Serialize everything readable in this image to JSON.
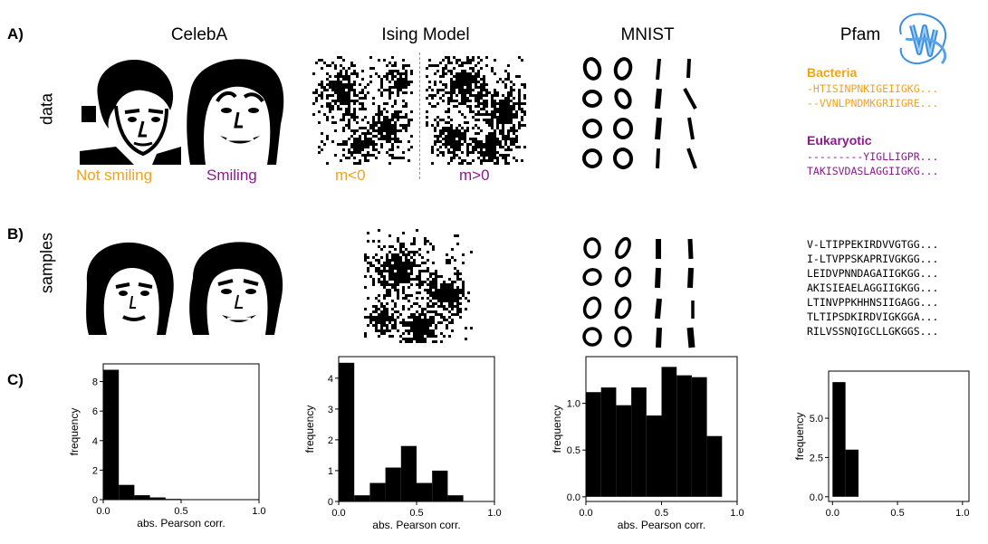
{
  "panel_labels": {
    "a": "A)",
    "b": "B)",
    "c": "C)"
  },
  "columns": {
    "celeba": "CelebA",
    "ising": "Ising Model",
    "mnist": "MNIST",
    "pfam": "Pfam"
  },
  "row_labels": {
    "data": "data",
    "samples": "samples"
  },
  "captions": {
    "not_smiling": "Not smiling",
    "smiling": "Smiling",
    "m_neg": "m<0",
    "m_pos": "m>0"
  },
  "colors": {
    "orange": "#f4a21c",
    "purple": "#8a1a8e",
    "divider": "#3ab0e0",
    "protein": "#3b8ede"
  },
  "pfam": {
    "bacteria_label": "Bacteria",
    "bacteria_seqs": [
      "-HTISINPNKIGEIIGKG...",
      "--VVNLPNDMKGRIIGRE..."
    ],
    "eukaryotic_label": "Eukaryotic",
    "eukaryotic_seqs": [
      "---------YIGLLIGPR...",
      "TAKISVDASLAGGIIGKG..."
    ],
    "sample_seqs": [
      "V-LTIPPEKIRDVVGTGG...",
      "I-LTVPPSKAPRIVGKGG...",
      "LEIDVPNNDAGAIIGKGG...",
      "AKISIEAELAGGIIGKGG...",
      "LTINVPPKHHNSIIGAGG...",
      "TLTIPSDKIRDVIGKGGA...",
      "RILVSSNQIGCLLGKGGS..."
    ]
  },
  "chart_data": [
    {
      "type": "bar",
      "title": "",
      "xlabel": "abs. Pearson corr.",
      "ylabel": "frequency",
      "xlim": [
        0,
        1
      ],
      "ylim": [
        0,
        9.2
      ],
      "xticks": [
        "0.0",
        "0.5",
        "1.0"
      ],
      "yticks": [
        0,
        2,
        4,
        6,
        8
      ],
      "ytick_labels": [
        "0",
        "2",
        "4",
        "6",
        "8"
      ],
      "bin_edges": [
        0,
        0.1,
        0.2,
        0.3,
        0.4,
        0.5
      ],
      "values": [
        8.8,
        1.0,
        0.3,
        0.15,
        0.05
      ]
    },
    {
      "type": "bar",
      "title": "",
      "xlabel": "abs. Pearson corr.",
      "ylabel": "frequency",
      "xlim": [
        0,
        1
      ],
      "ylim": [
        0,
        4.7
      ],
      "xticks": [
        "0.0",
        "0.5",
        "1.0"
      ],
      "yticks": [
        0,
        1,
        2,
        3,
        4
      ],
      "ytick_labels": [
        "0",
        "1",
        "2",
        "3",
        "4"
      ],
      "bin_edges": [
        0,
        0.1,
        0.2,
        0.3,
        0.4,
        0.5,
        0.6,
        0.7,
        0.8
      ],
      "values": [
        4.5,
        0.2,
        0.6,
        1.1,
        1.8,
        0.6,
        1.0,
        0.2
      ]
    },
    {
      "type": "bar",
      "title": "",
      "xlabel": "abs. Pearson corr.",
      "ylabel": "frequency",
      "xlim": [
        0,
        1
      ],
      "ylim": [
        -0.05,
        1.5
      ],
      "xticks": [
        "0.0",
        "0.5",
        "1.0"
      ],
      "yticks": [
        0,
        0.5,
        1.0
      ],
      "ytick_labels": [
        "0.0",
        "0.5",
        "1.0"
      ],
      "bin_edges": [
        0,
        0.1,
        0.2,
        0.3,
        0.4,
        0.5,
        0.6,
        0.7,
        0.8,
        0.9
      ],
      "values": [
        1.12,
        1.17,
        0.98,
        1.17,
        0.87,
        1.39,
        1.3,
        1.28,
        0.65
      ]
    },
    {
      "type": "bar",
      "title": "",
      "xlabel": "",
      "ylabel": "frequency",
      "xlim": [
        -0.03,
        1.05
      ],
      "ylim": [
        -0.3,
        8.0
      ],
      "xticks": [
        "0.0",
        "0.5",
        "1.0"
      ],
      "yticks": [
        0,
        2.5,
        5.0
      ],
      "ytick_labels": [
        "0.0",
        "2.5",
        "5.0"
      ],
      "bin_edges": [
        0,
        0.1,
        0.2
      ],
      "values": [
        7.3,
        3.0
      ]
    }
  ]
}
